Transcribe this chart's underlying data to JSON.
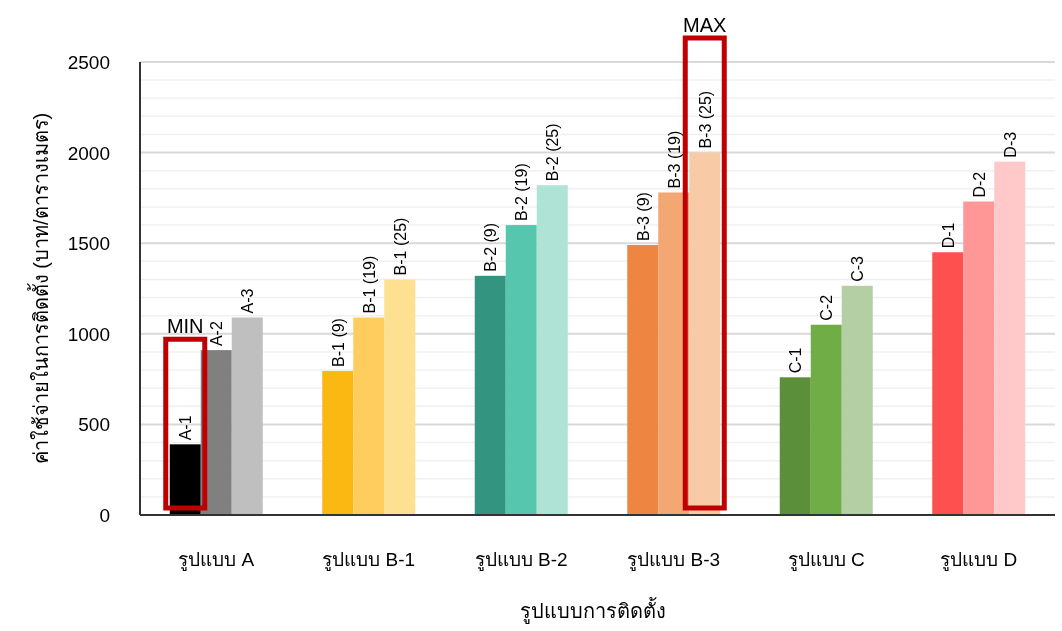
{
  "chart_data": {
    "type": "bar",
    "xlabel": "รูปแบบการติดตั้ง",
    "ylabel": "ค่าใช้จ่ายในการติดตั้ง (บาท/ตารางเมตร)",
    "categories": [
      "รูปแบบ A",
      "รูปแบบ B-1",
      "รูปแบบ B-2",
      "รูปแบบ B-3",
      "รูปแบบ C",
      "รูปแบบ D"
    ],
    "series": [
      {
        "values": [
          390,
          795,
          1320,
          1490,
          760,
          1450
        ],
        "colors": [
          "#000000",
          "#fbb812",
          "#339580",
          "#ee8540",
          "#5b8f3a",
          "#ff5050"
        ],
        "value_labels": [
          "A-1",
          "B-1 (9)",
          "B-2 (9)",
          "B-3 (9)",
          "C-1",
          "D-1"
        ]
      },
      {
        "values": [
          910,
          1090,
          1600,
          1780,
          1050,
          1730
        ],
        "colors": [
          "#808080",
          "#ffcd5e",
          "#57c6ae",
          "#f3a874",
          "#70ad47",
          "#ff9797"
        ],
        "value_labels": [
          "A-2",
          "B-1 (19)",
          "B-2 (19)",
          "B-3 (19)",
          "C-2",
          "D-2"
        ]
      },
      {
        "values": [
          1090,
          1300,
          1820,
          2000,
          1265,
          1950
        ],
        "colors": [
          "#bfbfbf",
          "#fde090",
          "#aee3d6",
          "#f8caa5",
          "#b3cfa3",
          "#ffc9c9"
        ],
        "value_labels": [
          "A-3",
          "B-1 (25)",
          "B-2 (25)",
          "B-3 (25)",
          "C-3",
          "D-3"
        ]
      }
    ],
    "ylim": [
      0,
      2500
    ],
    "yticks": [
      0,
      {
        "value": 100,
        "label": null
      },
      {
        "value": 200,
        "label": null
      },
      {
        "value": 300,
        "label": null
      },
      {
        "value": 400,
        "label": null
      },
      500,
      {
        "value": 600,
        "label": null
      },
      {
        "value": 700,
        "label": null
      },
      {
        "value": 800,
        "label": null
      },
      {
        "value": 900,
        "label": null
      },
      1000,
      {
        "value": 1100,
        "label": null
      },
      {
        "value": 1200,
        "label": null
      },
      {
        "value": 1300,
        "label": null
      },
      {
        "value": 1400,
        "label": null
      },
      1500,
      {
        "value": 1600,
        "label": null
      },
      {
        "value": 1700,
        "label": null
      },
      {
        "value": 1800,
        "label": null
      },
      {
        "value": 1900,
        "label": null
      },
      2000,
      {
        "value": 2100,
        "label": null
      },
      {
        "value": 2200,
        "label": null
      },
      {
        "value": 2300,
        "label": null
      },
      {
        "value": 2400,
        "label": null
      },
      2500
    ],
    "grid": "y",
    "annotations": [
      "MIN",
      "MAX"
    ]
  }
}
